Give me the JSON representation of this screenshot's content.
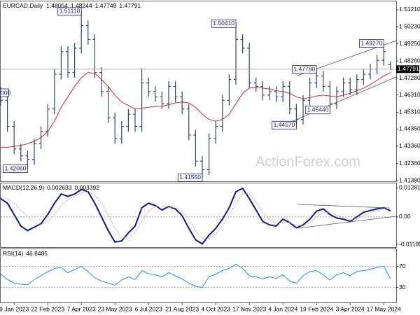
{
  "chart_data": [
    {
      "type": "ohlc",
      "title": "EURCAD,Daily",
      "color": "#2e4a66",
      "categories": [
        null,
        null,
        "9 Jan 2023",
        null,
        null,
        null,
        null,
        "22 Feb 2023",
        null,
        null,
        null,
        null,
        "7 Apr 2023",
        null,
        null,
        null,
        null,
        "23 May 2023",
        null,
        null,
        null,
        null,
        "6 Jul 2023",
        null,
        null,
        null,
        null,
        "21 Aug 2023",
        null,
        null,
        null,
        null,
        "4 Oct 2023",
        null,
        null,
        null,
        null,
        "17 Nov 2023",
        null,
        null,
        null,
        null,
        "4 Jan 2024",
        null,
        null,
        null,
        null,
        "19 Feb 2024",
        null,
        null,
        null,
        null,
        "3 Apr 2024",
        null,
        null,
        null,
        null,
        "17 May 2024",
        null
      ],
      "open": [
        1.465,
        1.46,
        1.445,
        1.432,
        1.428,
        1.426,
        1.435,
        1.442,
        1.455,
        1.475,
        1.488,
        1.476,
        1.49,
        1.503,
        1.495,
        1.476,
        1.465,
        1.45,
        1.438,
        1.445,
        1.452,
        1.445,
        1.47,
        1.465,
        1.462,
        1.458,
        1.468,
        1.462,
        1.455,
        1.44,
        1.425,
        1.42,
        1.438,
        1.445,
        1.46,
        1.472,
        1.495,
        1.49,
        1.47,
        1.468,
        1.463,
        1.465,
        1.462,
        1.468,
        1.455,
        1.449,
        1.46,
        1.47,
        1.474,
        1.468,
        1.458,
        1.465,
        1.47,
        1.466,
        1.472,
        1.475,
        1.478,
        1.483,
        1.48054
      ],
      "high": [
        1.468,
        1.463,
        1.448,
        1.435,
        1.431,
        1.438,
        1.445,
        1.458,
        1.478,
        1.491,
        1.491,
        1.493,
        1.5111,
        1.506,
        1.498,
        1.479,
        1.468,
        1.453,
        1.448,
        1.455,
        1.455,
        1.4785,
        1.473,
        1.468,
        1.465,
        1.471,
        1.471,
        1.465,
        1.458,
        1.443,
        1.428,
        1.441,
        1.448,
        1.463,
        1.475,
        1.5041,
        1.498,
        1.493,
        1.473,
        1.471,
        1.468,
        1.468,
        1.471,
        1.471,
        1.458,
        1.463,
        1.473,
        1.4778,
        1.477,
        1.471,
        1.468,
        1.473,
        1.473,
        1.475,
        1.478,
        1.481,
        1.486,
        1.4927,
        1.48244
      ],
      "low": [
        1.457,
        1.442,
        1.429,
        1.425,
        1.4206,
        1.423,
        1.432,
        1.439,
        1.452,
        1.472,
        1.473,
        1.473,
        1.487,
        1.492,
        1.473,
        1.462,
        1.447,
        1.435,
        1.435,
        1.442,
        1.442,
        1.442,
        1.462,
        1.459,
        1.455,
        1.455,
        1.459,
        1.452,
        1.437,
        1.422,
        1.4155,
        1.417,
        1.435,
        1.442,
        1.457,
        1.469,
        1.487,
        1.467,
        1.465,
        1.46,
        1.46,
        1.459,
        1.459,
        1.452,
        1.4457,
        1.446,
        1.457,
        1.467,
        1.465,
        1.4544,
        1.455,
        1.462,
        1.463,
        1.463,
        1.469,
        1.472,
        1.475,
        1.48,
        1.47749
      ],
      "close": [
        1.46,
        1.445,
        1.432,
        1.428,
        1.426,
        1.435,
        1.442,
        1.455,
        1.475,
        1.488,
        1.476,
        1.49,
        1.503,
        1.495,
        1.476,
        1.465,
        1.45,
        1.438,
        1.445,
        1.452,
        1.445,
        1.47,
        1.465,
        1.462,
        1.458,
        1.468,
        1.462,
        1.455,
        1.44,
        1.425,
        1.42,
        1.438,
        1.445,
        1.46,
        1.472,
        1.495,
        1.49,
        1.47,
        1.468,
        1.463,
        1.465,
        1.462,
        1.468,
        1.455,
        1.449,
        1.46,
        1.47,
        1.474,
        1.468,
        1.458,
        1.465,
        1.47,
        1.466,
        1.472,
        1.475,
        1.478,
        1.483,
        1.488,
        1.47791
      ],
      "ma": {
        "color": "#e0262b",
        "values": [
          1.433,
          1.433,
          1.4335,
          1.434,
          1.435,
          1.4365,
          1.4385,
          1.442,
          1.448,
          1.456,
          1.462,
          1.468,
          1.473,
          1.476,
          1.4755,
          1.472,
          1.468,
          1.463,
          1.459,
          1.457,
          1.455,
          1.4555,
          1.456,
          1.4565,
          1.4565,
          1.4575,
          1.4585,
          1.459,
          1.4585,
          1.456,
          1.452,
          1.449,
          1.448,
          1.449,
          1.452,
          1.458,
          1.464,
          1.467,
          1.4675,
          1.467,
          1.4665,
          1.4655,
          1.465,
          1.464,
          1.462,
          1.461,
          1.4615,
          1.4625,
          1.463,
          1.4625,
          1.462,
          1.463,
          1.464,
          1.4655,
          1.467,
          1.469,
          1.4715,
          1.474,
          1.476
        ]
      },
      "ylim": [
        1.4138,
        1.5161
      ],
      "yticks": [
        {
          "value": 1.5121,
          "label": "1.51210"
        },
        {
          "value": 1.5023,
          "label": "1.50230"
        },
        {
          "value": 1.4925,
          "label": "1.49250"
        },
        {
          "value": 1.4826,
          "label": "1.48260"
        },
        {
          "value": 1.4728,
          "label": "1.47280"
        },
        {
          "value": 1.4631,
          "label": "1.46310"
        },
        {
          "value": 1.4531,
          "label": "1.45310"
        },
        {
          "value": 1.4435,
          "label": "1.44350"
        },
        {
          "value": 1.4336,
          "label": "1.43360"
        },
        {
          "value": 1.4236,
          "label": "1.42360"
        },
        {
          "value": 1.4138,
          "label": "1.41380"
        }
      ],
      "annotations": [
        {
          "value": 1.5111,
          "label": "1.51110"
        },
        {
          "value": 1.5041,
          "label": "1.50410"
        },
        {
          "value": 1.4927,
          "label": "1.49270"
        },
        {
          "value": 1.4778,
          "label": "1.47780"
        },
        {
          "value": 1.4544,
          "label": "1.45440"
        },
        {
          "value": 1.4457,
          "label": "1.44570"
        },
        {
          "value": 1.4155,
          "label": "1.41550"
        },
        {
          "value": 1.4206,
          "label": "1.42060"
        }
      ],
      "edge_label": "000",
      "watermark": "ActionForex.com"
    },
    {
      "type": "line",
      "title": "MACD(12,26,9)",
      "series": [
        {
          "color": "#0a1a8a",
          "style": "solid",
          "values": [
            0.008,
            0.006,
            0.001,
            -0.004,
            -0.006,
            -0.0045,
            -0.003,
            0.001,
            0.006,
            0.01,
            0.009,
            0.01,
            0.012,
            0.011,
            0.006,
            0.0,
            -0.006,
            -0.011,
            -0.0105,
            -0.007,
            -0.004,
            0.004,
            0.006,
            0.005,
            0.003,
            0.0045,
            0.0035,
            0.0005,
            -0.005,
            -0.01,
            -0.0118,
            -0.008,
            -0.005,
            -0.001,
            0.004,
            0.011,
            0.0125,
            0.008,
            0.003,
            -0.002,
            -0.0035,
            -0.004,
            -0.001,
            -0.0025,
            -0.0048,
            -0.0035,
            -0.001,
            0.0025,
            0.0035,
            0.001,
            -0.0005,
            -0.001,
            -0.002,
            0.0,
            0.002,
            0.0028,
            0.0035,
            0.004,
            0.002633
          ]
        },
        {
          "color": "#d9a0a8",
          "style": "dotted",
          "values": [
            0.0085,
            0.0078,
            0.006,
            0.003,
            0.0,
            -0.0025,
            -0.0035,
            -0.002,
            0.001,
            0.005,
            0.0075,
            0.009,
            0.0105,
            0.011,
            0.0095,
            0.006,
            0.001,
            -0.005,
            -0.009,
            -0.009,
            -0.007,
            -0.002,
            0.0025,
            0.0045,
            0.0045,
            0.0042,
            0.004,
            0.0025,
            -0.001,
            -0.006,
            -0.01,
            -0.0095,
            -0.0075,
            -0.004,
            0.0005,
            0.006,
            0.01,
            0.01,
            0.0065,
            0.002,
            -0.0015,
            -0.003,
            -0.0025,
            -0.0025,
            -0.0035,
            -0.0038,
            -0.0025,
            0.0,
            0.002,
            0.002,
            0.0008,
            -0.0002,
            -0.0012,
            -0.0008,
            0.0005,
            0.0018,
            0.0028,
            0.0035,
            0.003392
          ]
        }
      ],
      "ylim": [
        -0.011993,
        0.012811
      ],
      "yticks": [
        0.012811,
        {
          "value": 0,
          "label": "0.00"
        },
        -0.011993
      ]
    },
    {
      "type": "line",
      "title": "RSI(14)",
      "series": [
        {
          "color": "#1e90ff",
          "style": "solid",
          "values": [
            55,
            45,
            38,
            36,
            35,
            45,
            52,
            60,
            66,
            68,
            58,
            64,
            70,
            60,
            48,
            42,
            38,
            34,
            44,
            50,
            45,
            62,
            56,
            54,
            50,
            58,
            52,
            46,
            38,
            32,
            30,
            50,
            55,
            62,
            66,
            74,
            66,
            52,
            50,
            46,
            50,
            47,
            54,
            42,
            38,
            52,
            60,
            62,
            54,
            44,
            54,
            58,
            52,
            60,
            62,
            64,
            68,
            70,
            46.8485
          ]
        }
      ],
      "ylim": [
        0,
        100
      ],
      "yticks": [
        70,
        30
      ]
    }
  ]
}
